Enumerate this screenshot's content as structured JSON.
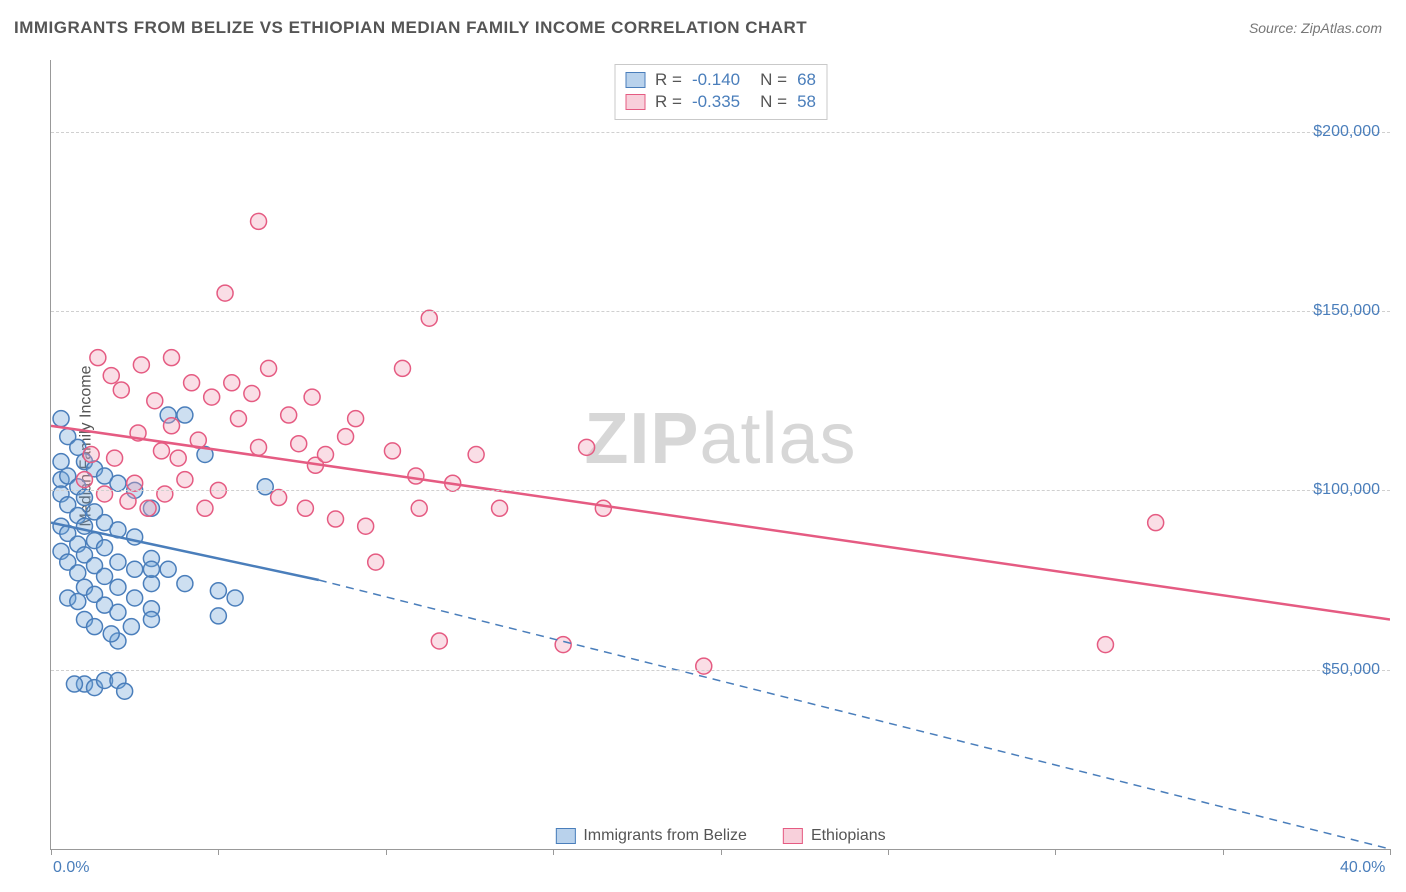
{
  "title": "IMMIGRANTS FROM BELIZE VS ETHIOPIAN MEDIAN FAMILY INCOME CORRELATION CHART",
  "source": "Source: ZipAtlas.com",
  "ylabel": "Median Family Income",
  "watermark_bold": "ZIP",
  "watermark_rest": "atlas",
  "chart": {
    "type": "scatter",
    "background_color": "#ffffff",
    "grid_color": "#d0d0d0",
    "axis_color": "#999999",
    "text_color": "#555555",
    "value_color": "#4a7ebb",
    "xlim": [
      0,
      40
    ],
    "ylim": [
      0,
      220000
    ],
    "xticks": [
      0,
      5,
      10,
      15,
      20,
      25,
      30,
      35,
      40
    ],
    "xtick_labels": {
      "0": "0.0%",
      "40": "40.0%"
    },
    "yticks": [
      50000,
      100000,
      150000,
      200000
    ],
    "ytick_labels": [
      "$50,000",
      "$100,000",
      "$150,000",
      "$200,000"
    ],
    "marker_radius": 8,
    "marker_stroke_width": 1.5,
    "marker_fill_opacity": 0.35,
    "series": [
      {
        "name": "Immigrants from Belize",
        "key": "belize",
        "color": "#6fa3d8",
        "stroke": "#4a7ebb",
        "R": "-0.140",
        "N": "68",
        "trend": {
          "solid_from": [
            0,
            91000
          ],
          "solid_to": [
            8,
            75000
          ],
          "dashed_to": [
            40,
            0
          ],
          "width": 2.5
        },
        "points": [
          [
            0.3,
            120000
          ],
          [
            0.3,
            108000
          ],
          [
            0.3,
            103000
          ],
          [
            0.3,
            99000
          ],
          [
            0.3,
            90000
          ],
          [
            0.3,
            83000
          ],
          [
            0.5,
            115000
          ],
          [
            0.5,
            104000
          ],
          [
            0.5,
            96000
          ],
          [
            0.5,
            88000
          ],
          [
            0.5,
            80000
          ],
          [
            0.5,
            70000
          ],
          [
            0.8,
            112000
          ],
          [
            0.8,
            101000
          ],
          [
            0.8,
            93000
          ],
          [
            0.8,
            85000
          ],
          [
            0.8,
            77000
          ],
          [
            0.8,
            69000
          ],
          [
            1.0,
            108000
          ],
          [
            1.0,
            98000
          ],
          [
            1.0,
            90000
          ],
          [
            1.0,
            82000
          ],
          [
            1.0,
            73000
          ],
          [
            1.0,
            64000
          ],
          [
            1.3,
            106000
          ],
          [
            1.3,
            94000
          ],
          [
            1.3,
            86000
          ],
          [
            1.3,
            79000
          ],
          [
            1.3,
            71000
          ],
          [
            1.3,
            62000
          ],
          [
            1.6,
            104000
          ],
          [
            1.6,
            91000
          ],
          [
            1.6,
            84000
          ],
          [
            1.6,
            76000
          ],
          [
            1.6,
            68000
          ],
          [
            2.0,
            102000
          ],
          [
            2.0,
            89000
          ],
          [
            2.0,
            80000
          ],
          [
            2.0,
            73000
          ],
          [
            2.0,
            66000
          ],
          [
            2.0,
            58000
          ],
          [
            2.5,
            100000
          ],
          [
            2.5,
            87000
          ],
          [
            2.5,
            78000
          ],
          [
            2.5,
            70000
          ],
          [
            3.0,
            95000
          ],
          [
            3.0,
            81000
          ],
          [
            3.0,
            74000
          ],
          [
            3.0,
            67000
          ],
          [
            3.5,
            121000
          ],
          [
            3.5,
            78000
          ],
          [
            4.0,
            121000
          ],
          [
            4.0,
            74000
          ],
          [
            4.6,
            110000
          ],
          [
            5.0,
            72000
          ],
          [
            5.0,
            65000
          ],
          [
            5.5,
            70000
          ],
          [
            6.4,
            101000
          ],
          [
            1.0,
            46000
          ],
          [
            1.3,
            45000
          ],
          [
            1.6,
            47000
          ],
          [
            0.7,
            46000
          ],
          [
            2.0,
            47000
          ],
          [
            2.2,
            44000
          ],
          [
            3.0,
            64000
          ],
          [
            3.0,
            78000
          ],
          [
            1.8,
            60000
          ],
          [
            2.4,
            62000
          ]
        ]
      },
      {
        "name": "Ethiopians",
        "key": "ethiopians",
        "color": "#f2a0b6",
        "stroke": "#e55b82",
        "R": "-0.335",
        "N": "58",
        "trend": {
          "solid_from": [
            0,
            118000
          ],
          "solid_to": [
            40,
            64000
          ],
          "dashed_to": null,
          "width": 2.5
        },
        "points": [
          [
            1.4,
            137000
          ],
          [
            1.8,
            132000
          ],
          [
            2.1,
            128000
          ],
          [
            2.6,
            116000
          ],
          [
            2.7,
            135000
          ],
          [
            3.1,
            125000
          ],
          [
            3.3,
            111000
          ],
          [
            3.6,
            137000
          ],
          [
            3.8,
            109000
          ],
          [
            4.2,
            130000
          ],
          [
            4.4,
            114000
          ],
          [
            4.8,
            126000
          ],
          [
            5.2,
            155000
          ],
          [
            5.4,
            130000
          ],
          [
            6.0,
            127000
          ],
          [
            6.2,
            175000
          ],
          [
            6.2,
            112000
          ],
          [
            6.5,
            134000
          ],
          [
            7.1,
            121000
          ],
          [
            7.4,
            113000
          ],
          [
            7.8,
            126000
          ],
          [
            7.9,
            107000
          ],
          [
            8.2,
            110000
          ],
          [
            8.8,
            115000
          ],
          [
            9.1,
            120000
          ],
          [
            9.7,
            80000
          ],
          [
            10.2,
            111000
          ],
          [
            10.5,
            134000
          ],
          [
            11.0,
            95000
          ],
          [
            11.3,
            148000
          ],
          [
            11.6,
            58000
          ],
          [
            12.0,
            102000
          ],
          [
            12.7,
            110000
          ],
          [
            13.4,
            95000
          ],
          [
            15.3,
            57000
          ],
          [
            16.0,
            112000
          ],
          [
            16.5,
            95000
          ],
          [
            19.5,
            51000
          ],
          [
            31.5,
            57000
          ],
          [
            33.0,
            91000
          ],
          [
            1.0,
            103000
          ],
          [
            1.2,
            110000
          ],
          [
            1.6,
            99000
          ],
          [
            1.9,
            109000
          ],
          [
            2.3,
            97000
          ],
          [
            2.5,
            102000
          ],
          [
            2.9,
            95000
          ],
          [
            3.4,
            99000
          ],
          [
            3.6,
            118000
          ],
          [
            4.0,
            103000
          ],
          [
            4.6,
            95000
          ],
          [
            5.0,
            100000
          ],
          [
            5.6,
            120000
          ],
          [
            6.8,
            98000
          ],
          [
            7.6,
            95000
          ],
          [
            8.5,
            92000
          ],
          [
            9.4,
            90000
          ],
          [
            10.9,
            104000
          ]
        ]
      }
    ],
    "bottom_legend": [
      {
        "swatch_fill": "#b9d2ec",
        "swatch_stroke": "#4a7ebb",
        "label": "Immigrants from Belize"
      },
      {
        "swatch_fill": "#f8d0db",
        "swatch_stroke": "#e55b82",
        "label": "Ethiopians"
      }
    ]
  }
}
